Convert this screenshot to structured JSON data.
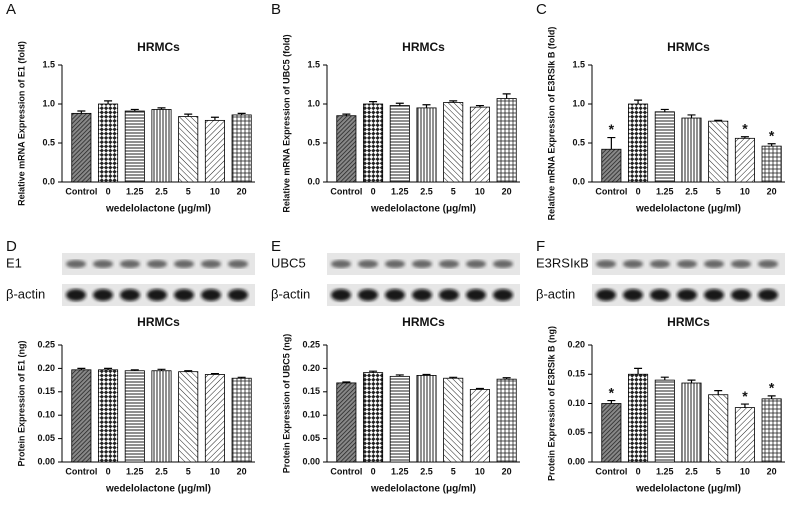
{
  "chart_data": [
    {
      "type": "bar",
      "panel": "A",
      "title": "HRMCs",
      "ylabel": "Relative mRNA Expression of E1  (fold)",
      "xlabel": "wedelolactone (μg/ml)",
      "categories": [
        "Control",
        "0",
        "1.25",
        "2.5",
        "5",
        "10",
        "20"
      ],
      "values": [
        0.88,
        1.0,
        0.91,
        0.93,
        0.84,
        0.79,
        0.86
      ],
      "errors": [
        0.03,
        0.04,
        0.02,
        0.02,
        0.03,
        0.04,
        0.02
      ],
      "ylim": [
        0,
        1.5
      ],
      "yticks": [
        {
          "value": 0,
          "label": "0.0"
        },
        0.5,
        {
          "value": 1,
          "label": "1.0"
        },
        1.5
      ]
    },
    {
      "type": "bar",
      "panel": "B",
      "title": "HRMCs",
      "ylabel": "Relative mRNA  Expression of UBC5  (fold)",
      "xlabel": "wedelolactone (μg/ml)",
      "categories": [
        "Control",
        "0",
        "1.25",
        "2.5",
        "5",
        "10",
        "20"
      ],
      "values": [
        0.85,
        1.0,
        0.98,
        0.95,
        1.02,
        0.96,
        1.07
      ],
      "errors": [
        0.02,
        0.03,
        0.03,
        0.04,
        0.02,
        0.02,
        0.06
      ],
      "ylim": [
        0,
        1.5
      ],
      "yticks": [
        {
          "value": 0,
          "label": "0.0"
        },
        0.5,
        {
          "value": 1,
          "label": "1.0"
        },
        1.5
      ]
    },
    {
      "type": "bar",
      "panel": "C",
      "title": "HRMCs",
      "ylabel": "Relative mRNA  Expression of E3RSIk B (fold)",
      "xlabel": "wedelolactone (μg/ml)",
      "categories": [
        "Control",
        "0",
        "1.25",
        "2.5",
        "5",
        "10",
        "20"
      ],
      "values": [
        0.42,
        1.0,
        0.9,
        0.82,
        0.78,
        0.56,
        0.46
      ],
      "errors": [
        0.15,
        0.05,
        0.03,
        0.04,
        0.01,
        0.02,
        0.03
      ],
      "significance": [
        "*",
        null,
        null,
        null,
        null,
        "*",
        "*"
      ],
      "ylim": [
        0,
        1.5
      ],
      "yticks": [
        {
          "value": 0,
          "label": "0.0"
        },
        0.5,
        {
          "value": 1,
          "label": "1.0"
        },
        1.5
      ]
    },
    {
      "type": "bar",
      "panel": "D",
      "blot_labels": [
        "E1",
        "β-actin"
      ],
      "title": "HRMCs",
      "ylabel": "Protein Expression of E1  (ng)",
      "xlabel": "wedelolactone (μg/ml)",
      "categories": [
        "Control",
        "0",
        "1.25",
        "2.5",
        "5",
        "10",
        "20"
      ],
      "values": [
        0.197,
        0.197,
        0.195,
        0.195,
        0.193,
        0.187,
        0.179
      ],
      "errors": [
        0.003,
        0.003,
        0.002,
        0.003,
        0.002,
        0.002,
        0.002
      ],
      "ylim": [
        0,
        0.25
      ],
      "yticks": [
        {
          "value": 0,
          "label": "0.00"
        },
        0.05,
        {
          "value": 0.1,
          "label": "0.10"
        },
        0.15,
        {
          "value": 0.2,
          "label": "0.20"
        },
        0.25
      ]
    },
    {
      "type": "bar",
      "panel": "E",
      "blot_labels": [
        "UBC5",
        "β-actin"
      ],
      "title": "HRMCs",
      "ylabel": "Protein  Expression of UBC5  (ng)",
      "xlabel": "wedelolactone (μg/ml)",
      "categories": [
        "Control",
        "0",
        "1.25",
        "2.5",
        "5",
        "10",
        "20"
      ],
      "values": [
        0.169,
        0.191,
        0.183,
        0.185,
        0.179,
        0.155,
        0.177
      ],
      "errors": [
        0.002,
        0.003,
        0.003,
        0.002,
        0.002,
        0.002,
        0.003
      ],
      "ylim": [
        0,
        0.25
      ],
      "yticks": [
        {
          "value": 0,
          "label": "0.00"
        },
        0.05,
        {
          "value": 0.1,
          "label": "0.10"
        },
        0.15,
        {
          "value": 0.2,
          "label": "0.20"
        },
        0.25
      ]
    },
    {
      "type": "bar",
      "panel": "F",
      "blot_labels": [
        "E3RSIκB",
        "β-actin"
      ],
      "title": "HRMCs",
      "ylabel": "Protein Expression of E3RSIk B  (ng)",
      "xlabel": "wedelolactone (μg/ml)",
      "categories": [
        "Control",
        "0",
        "1.25",
        "2.5",
        "5",
        "10",
        "20"
      ],
      "values": [
        0.1,
        0.15,
        0.14,
        0.135,
        0.115,
        0.093,
        0.108
      ],
      "errors": [
        0.005,
        0.01,
        0.005,
        0.005,
        0.007,
        0.006,
        0.005
      ],
      "significance": [
        "*",
        null,
        null,
        null,
        null,
        "*",
        "*"
      ],
      "ylim": [
        0,
        0.2
      ],
      "yticks": [
        {
          "value": 0,
          "label": "0.00"
        },
        0.05,
        {
          "value": 0.1,
          "label": "0.10"
        },
        0.15,
        {
          "value": 0.2,
          "label": "0.20"
        }
      ]
    }
  ]
}
